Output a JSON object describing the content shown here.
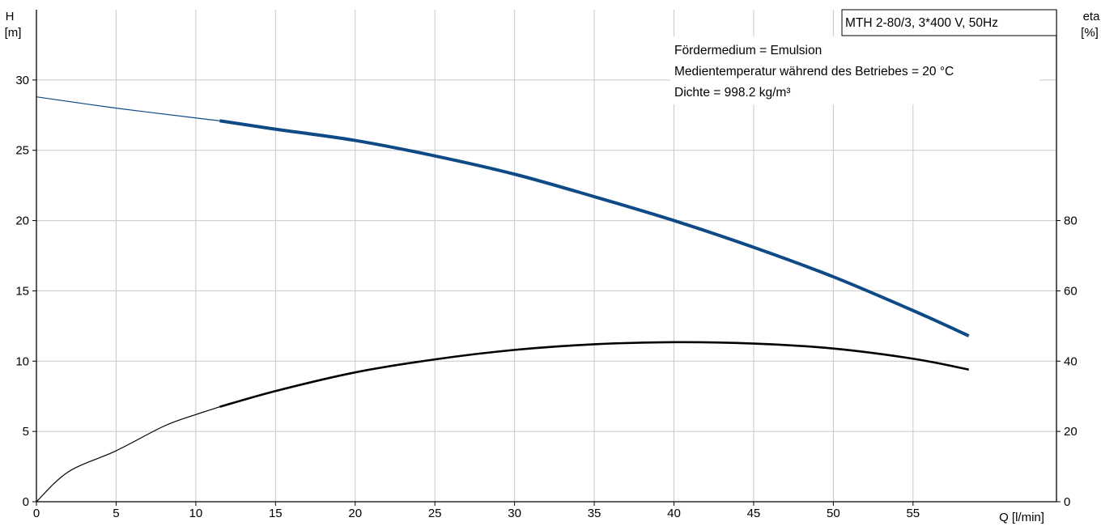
{
  "chart_data": {
    "type": "line",
    "x_axis": {
      "label": "Q [l/min]",
      "min": 0,
      "max": 64,
      "ticks": [
        0,
        5,
        10,
        15,
        20,
        25,
        30,
        35,
        40,
        45,
        50,
        55
      ]
    },
    "y_axis_left": {
      "label_symbol": "H",
      "label_unit": "[m]",
      "min": 0,
      "max": 35,
      "ticks": [
        0,
        5,
        10,
        15,
        20,
        25,
        30
      ]
    },
    "y_axis_right": {
      "label_symbol": "eta",
      "label_unit": "[%]",
      "min": 0,
      "max": 140,
      "ticks": [
        0,
        20,
        40,
        60,
        80
      ]
    },
    "grid": true,
    "legend_box": {
      "text": "MTH 2-80/3, 3*400 V, 50Hz",
      "position": "top-right"
    },
    "info_lines": [
      "Fördermedium = Emulsion",
      "Medientemperatur während des Betriebes = 20 °C",
      "Dichte = 998.2 kg/m³"
    ],
    "series": [
      {
        "key": "head",
        "axis": "left",
        "color": "#0e4a85",
        "extrapolated": [
          [
            0,
            28.8
          ],
          [
            5,
            28.0
          ],
          [
            10,
            27.3
          ],
          [
            11.5,
            27.1
          ]
        ],
        "points": [
          [
            11.5,
            27.1
          ],
          [
            15,
            26.5
          ],
          [
            20,
            25.7
          ],
          [
            25,
            24.6
          ],
          [
            30,
            23.3
          ],
          [
            35,
            21.7
          ],
          [
            40,
            20.0
          ],
          [
            45,
            18.1
          ],
          [
            50,
            16.0
          ],
          [
            55,
            13.6
          ],
          [
            58.5,
            11.8
          ]
        ]
      },
      {
        "key": "efficiency",
        "axis": "right",
        "color": "#000000",
        "extrapolated": [
          [
            0,
            0
          ],
          [
            2,
            8.5
          ],
          [
            5,
            14.5
          ],
          [
            8,
            21.5
          ],
          [
            10,
            24.8
          ],
          [
            11.5,
            27
          ]
        ],
        "points": [
          [
            11.5,
            27
          ],
          [
            15,
            31.5
          ],
          [
            20,
            36.8
          ],
          [
            25,
            40.5
          ],
          [
            30,
            43.2
          ],
          [
            35,
            44.8
          ],
          [
            40,
            45.4
          ],
          [
            45,
            45
          ],
          [
            50,
            43.6
          ],
          [
            55,
            40.7
          ],
          [
            58.5,
            37.6
          ]
        ]
      }
    ]
  }
}
